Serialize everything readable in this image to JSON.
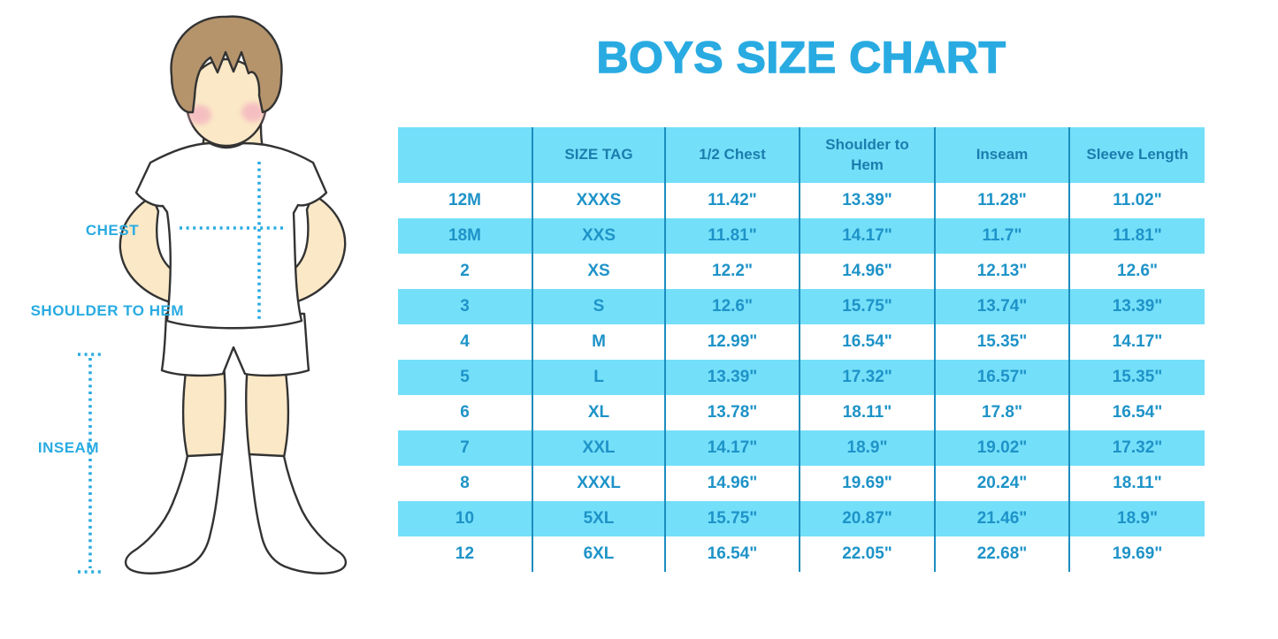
{
  "page": {
    "title": "BOYS SIZE CHART"
  },
  "figure": {
    "labels": [
      "CHEST",
      "SHOULDER TO HEM",
      "INSEAM"
    ]
  },
  "chart_data": {
    "type": "table",
    "title": "BOYS SIZE CHART",
    "columns": [
      "",
      "SIZE TAG",
      "1/2 Chest",
      "Shoulder to Hem",
      "Inseam",
      "Sleeve Length"
    ],
    "rows": [
      [
        "12M",
        "XXXS",
        "11.42\"",
        "13.39\"",
        "11.28\"",
        "11.02\""
      ],
      [
        "18M",
        "XXS",
        "11.81\"",
        "14.17\"",
        "11.7\"",
        "11.81\""
      ],
      [
        "2",
        "XS",
        "12.2\"",
        "14.96\"",
        "12.13\"",
        "12.6\""
      ],
      [
        "3",
        "S",
        "12.6\"",
        "15.75\"",
        "13.74\"",
        "13.39\""
      ],
      [
        "4",
        "M",
        "12.99\"",
        "16.54\"",
        "15.35\"",
        "14.17\""
      ],
      [
        "5",
        "L",
        "13.39\"",
        "17.32\"",
        "16.57\"",
        "15.35\""
      ],
      [
        "6",
        "XL",
        "13.78\"",
        "18.11\"",
        "17.8\"",
        "16.54\""
      ],
      [
        "7",
        "XXL",
        "14.17\"",
        "18.9\"",
        "19.02\"",
        "17.32\""
      ],
      [
        "8",
        "XXXL",
        "14.96\"",
        "19.69\"",
        "20.24\"",
        "18.11\""
      ],
      [
        "10",
        "5XL",
        "15.75\"",
        "20.87\"",
        "21.46\"",
        "18.9\""
      ],
      [
        "12",
        "6XL",
        "16.54\"",
        "22.05\"",
        "22.68\"",
        "19.69\""
      ]
    ]
  },
  "colors": {
    "accent": "#29ABE2",
    "table_fill": "#74DFF9",
    "table_divider": "#1B8DBF",
    "header_text": "#1B7DAD",
    "cell_text": "#1E93C8",
    "skin": "#FBE8C6",
    "hair": "#B5946C",
    "cheek": "#F2A9BE",
    "outline": "#333333"
  }
}
